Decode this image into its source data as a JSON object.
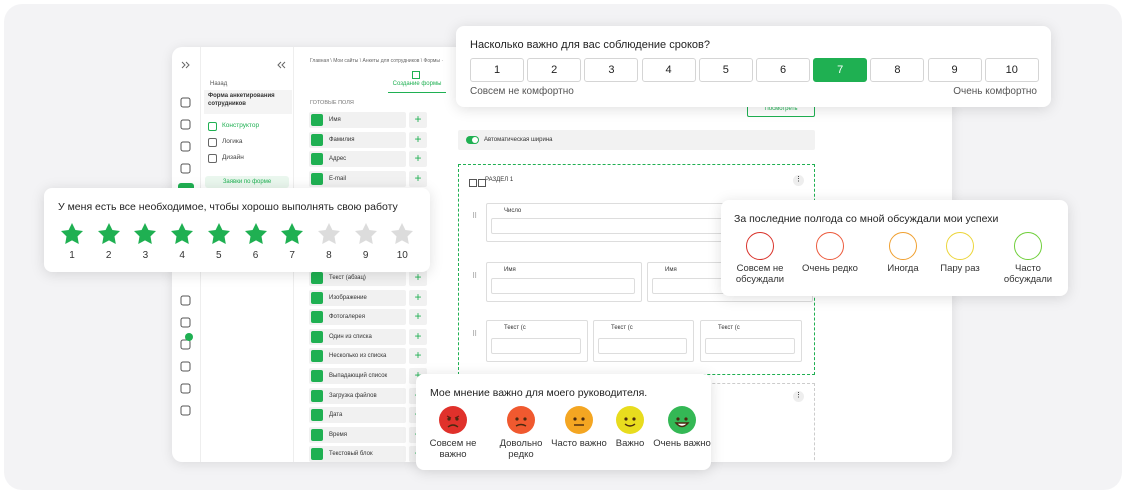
{
  "sidebar_panel": {
    "back": "Назад",
    "form_name": "Форма анкетирования сотрудников",
    "nav": [
      "Конструктор",
      "Логика",
      "Дизайн"
    ],
    "active_nav": 0,
    "submissions": "Заявки по форме"
  },
  "breadcrumb": "Главная \\ Мои сайты \\ Анкеты для сотрудников \\ Формы ·",
  "tab": "Создание формы",
  "fields_panel": {
    "title": "ГОТОВЫЕ ПОЛЯ",
    "top_fields": [
      "Имя",
      "Фамилия",
      "Адрес",
      "E-mail"
    ],
    "bottom_fields": [
      "Текст (абзац)",
      "Изображение",
      "Фотогалерея",
      "Один из списка",
      "Несколько из списка",
      "Выпадающий список",
      "Загрузка файлов",
      "Дата",
      "Время",
      "Текстовый блок"
    ]
  },
  "canvas": {
    "preview": "Посмотреть",
    "auto_width": "Автоматическая ширина",
    "section": "РАЗДЕЛ 1",
    "fields": [
      "Число",
      "Имя",
      "Имя",
      "Текст (с",
      "Текст (с",
      "Текст (с"
    ]
  },
  "scale_card": {
    "title": "Насколько важно для вас соблюдение сроков?",
    "options": [
      1,
      2,
      3,
      4,
      5,
      6,
      7,
      8,
      9,
      10
    ],
    "selected": 7,
    "color": "#1fb052",
    "min_label": "Совсем не комфортно",
    "max_label": "Очень комфортно"
  },
  "stars_card": {
    "title": "У меня есть все необходимое, чтобы хорошо выполнять свою работу",
    "labels": [
      1,
      2,
      3,
      4,
      5,
      6,
      7,
      8,
      9,
      10
    ],
    "rating": 7,
    "color": "#1fb052"
  },
  "circles_card": {
    "title": "За последние полгода со мной обсуждали мои успехи",
    "options": [
      {
        "label": "Совсем не обсуждали",
        "color": "#d9322a"
      },
      {
        "label": "Очень редко",
        "color": "#ec5a3c"
      },
      {
        "label": "Иногда",
        "color": "#f0a030"
      },
      {
        "label": "Пару раз",
        "color": "#ecd53a"
      },
      {
        "label": "Часто обсуждали",
        "color": "#6fcf3a"
      }
    ]
  },
  "emoji_card": {
    "title": "Мое мнение важно для моего руководителя.",
    "options": [
      {
        "label": "Совсем не важно",
        "color": "#e0312b"
      },
      {
        "label": "Довольно редко",
        "color": "#f0592f"
      },
      {
        "label": "Часто важно",
        "color": "#f4a622"
      },
      {
        "label": "Важно",
        "color": "#e8dc1e"
      },
      {
        "label": "Очень важно",
        "color": "#34b855"
      }
    ]
  }
}
